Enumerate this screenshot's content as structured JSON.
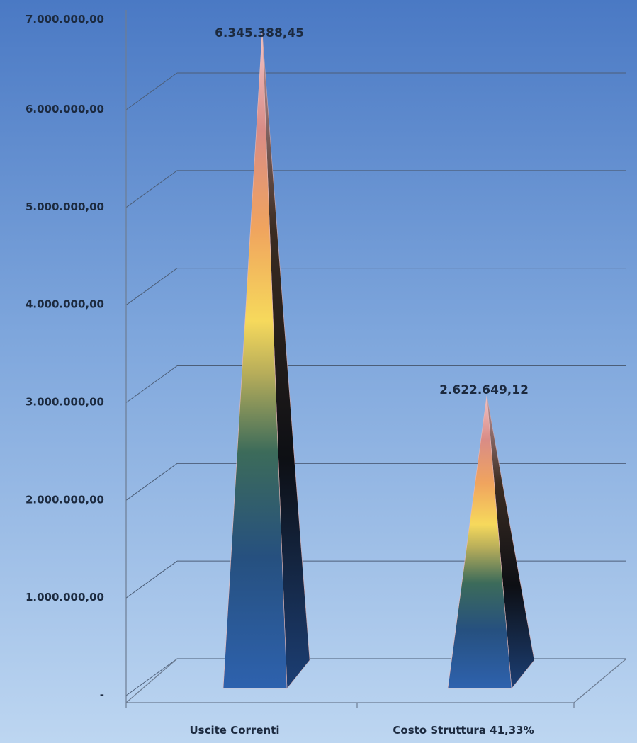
{
  "chart_data": {
    "type": "bar",
    "bar_shape": "pyramid",
    "categories": [
      "Uscite Correnti",
      "Costo Struttura 41,33%"
    ],
    "values": [
      6345388.45,
      2622649.12
    ],
    "data_labels": [
      "6.345.388,45",
      "2.622.649,12"
    ],
    "ylim": [
      0,
      7000000
    ],
    "y_ticks": [
      {
        "value": 0,
        "label": "-"
      },
      {
        "value": 1000000,
        "label": "1.000.000,00"
      },
      {
        "value": 2000000,
        "label": "2.000.000,00"
      },
      {
        "value": 3000000,
        "label": "3.000.000,00"
      },
      {
        "value": 4000000,
        "label": "4.000.000,00"
      },
      {
        "value": 5000000,
        "label": "5.000.000,00"
      },
      {
        "value": 6000000,
        "label": "6.000.000,00"
      },
      {
        "value": 7000000,
        "label": "7.000.000,00"
      }
    ],
    "grid": true,
    "legend": "none",
    "colors": {
      "background_top": "#4a79c4",
      "background_bottom": "#b9d3f0",
      "gridline": "#4c5e78",
      "text": "#1c2a3f",
      "bar_base": "#2f63ad",
      "bar_mid": "#5a8a78",
      "bar_highlight": "#f5d25a",
      "bar_peak": "#f0a583",
      "bar_shadow": "#0d0f14"
    }
  }
}
